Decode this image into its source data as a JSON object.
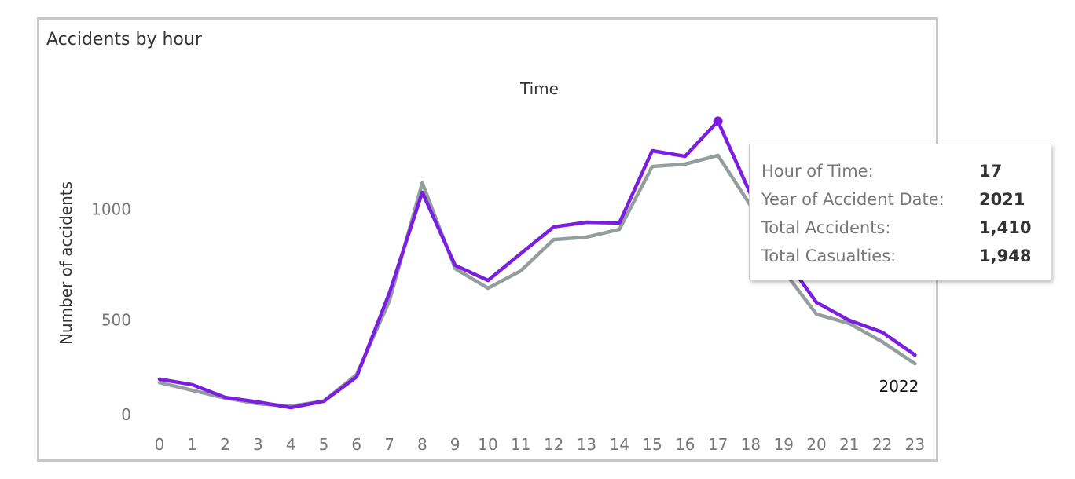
{
  "chart_data": {
    "type": "line",
    "title": "Accidents by hour",
    "xlabel": "Time",
    "ylabel": "Number of accidents",
    "x": [
      0,
      1,
      2,
      3,
      4,
      5,
      6,
      7,
      8,
      9,
      10,
      11,
      12,
      13,
      14,
      15,
      16,
      17,
      18,
      19,
      20,
      21,
      22,
      23
    ],
    "yticks": [
      0,
      500,
      1000
    ],
    "ylim": [
      0,
      1550
    ],
    "grid": false,
    "series": [
      {
        "name": "2021",
        "color": "#7a1fe0",
        "values": [
          248,
          223,
          166,
          145,
          120,
          149,
          258,
          637,
          1090,
          761,
          693,
          814,
          934,
          955,
          952,
          1277,
          1252,
          1410,
          1080,
          800,
          594,
          513,
          460,
          357
        ]
      },
      {
        "name": "2022",
        "color": "#959e9f",
        "values": [
          233,
          198,
          163,
          138,
          127,
          149,
          269,
          601,
          1132,
          746,
          658,
          736,
          877,
          888,
          923,
          1206,
          1217,
          1256,
          1029,
          736,
          541,
          499,
          417,
          318
        ]
      }
    ],
    "end_label": "2022",
    "highlight": {
      "series": "2021",
      "x": 17
    }
  },
  "tooltip": {
    "rows": [
      {
        "label": "Hour of Time:",
        "value": "17"
      },
      {
        "label": "Year of Accident Date:",
        "value": "2021"
      },
      {
        "label": "Total Accidents:",
        "value": "1,410"
      },
      {
        "label": "Total Casualties:",
        "value": "1,948"
      }
    ]
  }
}
